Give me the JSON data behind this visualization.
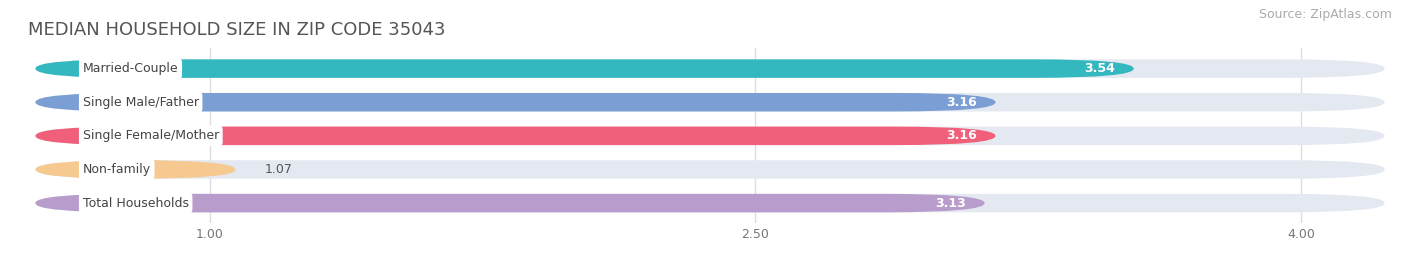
{
  "title": "MEDIAN HOUSEHOLD SIZE IN ZIP CODE 35043",
  "source": "Source: ZipAtlas.com",
  "categories": [
    "Married-Couple",
    "Single Male/Father",
    "Single Female/Mother",
    "Non-family",
    "Total Households"
  ],
  "values": [
    3.54,
    3.16,
    3.16,
    1.07,
    3.13
  ],
  "bar_colors": [
    "#34b8c0",
    "#7b9fd4",
    "#f0607a",
    "#f5c990",
    "#b89ccc"
  ],
  "bar_bg_color": "#e4e8f0",
  "label_bg_color": "#ffffff",
  "xlim_min": 0.5,
  "xlim_max": 4.25,
  "xticks": [
    1.0,
    2.5,
    4.0
  ],
  "xtick_labels": [
    "1.00",
    "2.50",
    "4.00"
  ],
  "title_fontsize": 13,
  "source_fontsize": 9,
  "label_fontsize": 9,
  "value_fontsize": 9,
  "bar_height": 0.55,
  "background_color": "#ffffff",
  "fig_width": 14.06,
  "fig_height": 2.69,
  "dpi": 100
}
